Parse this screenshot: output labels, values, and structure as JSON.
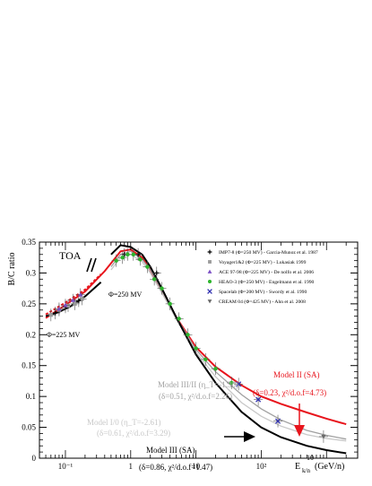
{
  "chart_data": {
    "type": "line",
    "xscale": "log",
    "xlim": [
      0.04,
      3000
    ],
    "ylim": [
      0,
      0.35
    ],
    "ylabel": "B/C ratio",
    "xlabel": "E",
    "xlabel_sub": "k/n",
    "xlabel_unit": "(GeV/n)",
    "xlabel_exp": "10",
    "x_tick_labels": [
      "10⁻¹",
      "1",
      "10",
      "10²"
    ],
    "x_ticks": [
      0.1,
      1,
      10,
      100
    ],
    "y_ticks": [
      0,
      0.05,
      0.1,
      0.15,
      0.2,
      0.25,
      0.3,
      0.35
    ],
    "y_tick_labels": [
      "0",
      "0.05",
      "0.1",
      "0.15",
      "0.2",
      "0.25",
      "0.3",
      "0.35"
    ],
    "annotations": {
      "toa": "TOA",
      "phi225": "Φ=225 MV",
      "phi250": "Φ=250 MV",
      "model_ii_line1": "Model II (SA)",
      "model_ii_line2": "(δ=0.23, χ²/d.o.f=4.73)",
      "model_iii_ii_line1": "Model III/II (η_T=-1.30)",
      "model_iii_ii_line2": "(δ=0.51, χ²/d.o.f=2.26)",
      "model_i0_line1": "Model I/0 (η_T=-2.61)",
      "model_i0_line2": "(δ=0.61, χ²/d.o.f=3.29)",
      "model_iii_line1": "Model III (SA)",
      "model_iii_line2": "(δ=0.86, χ²/d.o.f=1.47)"
    },
    "legend_position": "top-right",
    "legend": [
      {
        "label": "IMP7-8 (Φ=250 MV) - Garcia-Munoz et al. 1987",
        "marker": "plus",
        "color": "#000000"
      },
      {
        "label": "Voyager1&2 (Φ=225 MV) - Lukasiak 1999",
        "marker": "square",
        "color": "#9a9a9a"
      },
      {
        "label": "ACE 97-98 (Φ=225 MV) - De nolfo et al. 2006",
        "marker": "triangle-up",
        "color": "#7b4fc4"
      },
      {
        "label": "HEAO-3 (Φ=250 MV) - Engelmann et al. 1990",
        "marker": "circle",
        "color": "#2db52d"
      },
      {
        "label": "Spacelab (Φ=200 MV) - Swordy et al. 1990",
        "marker": "cross",
        "color": "#3030b0"
      },
      {
        "label": "CREAM 04 (Φ=425 MV) - Ahn et al. 2008",
        "marker": "triangle-down",
        "color": "#6a6a6a"
      }
    ],
    "series": [
      {
        "name": "Model II (SA)",
        "color": "#e8141c",
        "style": "solid",
        "x": [
          0.05,
          0.1,
          0.2,
          0.4,
          0.7,
          1,
          1.5,
          2,
          3,
          5,
          10,
          20,
          50,
          100,
          200,
          500,
          1000,
          2000
        ],
        "y": [
          0.227,
          0.248,
          0.27,
          0.303,
          0.335,
          0.338,
          0.325,
          0.305,
          0.27,
          0.228,
          0.18,
          0.148,
          0.118,
          0.1,
          0.088,
          0.074,
          0.064,
          0.055
        ]
      },
      {
        "name": "Model III/II (η_T=-1.30)",
        "color": "#a0a0a0",
        "style": "solid",
        "x": [
          0.5,
          0.7,
          1,
          1.5,
          2,
          3,
          5,
          10,
          20,
          50,
          100,
          200,
          500,
          1000,
          2000
        ],
        "y": [
          0.31,
          0.33,
          0.335,
          0.322,
          0.305,
          0.272,
          0.228,
          0.176,
          0.14,
          0.103,
          0.08,
          0.062,
          0.045,
          0.037,
          0.031
        ]
      },
      {
        "name": "Model I/0 (η_T=-2.61)",
        "color": "#c8c8c8",
        "style": "solid",
        "x": [
          0.5,
          0.7,
          1,
          1.5,
          2,
          3,
          5,
          10,
          20,
          50,
          100,
          200,
          500,
          1000,
          2000
        ],
        "y": [
          0.305,
          0.325,
          0.33,
          0.318,
          0.3,
          0.268,
          0.225,
          0.172,
          0.132,
          0.09,
          0.068,
          0.052,
          0.038,
          0.032,
          0.028
        ]
      },
      {
        "name": "Model III (SA)",
        "color": "#000000",
        "style": "solid",
        "x": [
          0.5,
          0.7,
          1,
          1.5,
          2,
          3,
          5,
          10,
          20,
          50,
          100,
          200,
          500,
          1000,
          2000
        ],
        "y": [
          0.33,
          0.345,
          0.342,
          0.33,
          0.31,
          0.275,
          0.228,
          0.168,
          0.122,
          0.075,
          0.05,
          0.034,
          0.02,
          0.013,
          0.008
        ]
      },
      {
        "name": "Model III (SA) low-energy",
        "color": "#000000",
        "style": "solid",
        "x": [
          0.05,
          0.08,
          0.12,
          0.2,
          0.35
        ],
        "y": [
          0.23,
          0.237,
          0.246,
          0.262,
          0.285
        ]
      },
      {
        "name": "Model II (SA) dashed",
        "color": "#e8141c",
        "style": "dashed",
        "x": [
          0.05,
          0.1,
          0.2,
          0.35
        ],
        "y": [
          0.233,
          0.252,
          0.273,
          0.298
        ]
      }
    ],
    "data_points": [
      {
        "marker": "plus",
        "color": "#000000",
        "points": [
          [
            0.07,
            0.235
          ],
          [
            0.1,
            0.245
          ],
          [
            0.16,
            0.255
          ],
          [
            0.8,
            0.33
          ],
          [
            1.3,
            0.33
          ],
          [
            2.5,
            0.3
          ]
        ]
      },
      {
        "marker": "square",
        "color": "#9a9a9a",
        "points": [
          [
            0.06,
            0.232
          ],
          [
            0.08,
            0.24
          ],
          [
            0.11,
            0.247
          ],
          [
            0.14,
            0.25
          ],
          [
            0.18,
            0.258
          ]
        ]
      },
      {
        "marker": "triangle-up",
        "color": "#7b4fc4",
        "points": [
          [
            0.08,
            0.242
          ],
          [
            0.1,
            0.248
          ],
          [
            0.13,
            0.256
          ],
          [
            0.17,
            0.265
          ]
        ]
      },
      {
        "marker": "circle",
        "color": "#2db52d",
        "points": [
          [
            0.6,
            0.32
          ],
          [
            0.75,
            0.325
          ],
          [
            0.9,
            0.33
          ],
          [
            1.1,
            0.33
          ],
          [
            1.4,
            0.322
          ],
          [
            1.8,
            0.31
          ],
          [
            2.3,
            0.29
          ],
          [
            3,
            0.275
          ],
          [
            4,
            0.25
          ],
          [
            5.5,
            0.226
          ],
          [
            7.5,
            0.2
          ],
          [
            10,
            0.178
          ],
          [
            14,
            0.16
          ],
          [
            20,
            0.145
          ],
          [
            35,
            0.122
          ]
        ]
      },
      {
        "marker": "cross",
        "color": "#3030b0",
        "points": [
          [
            45,
            0.12
          ],
          [
            90,
            0.095
          ],
          [
            180,
            0.06
          ]
        ]
      },
      {
        "marker": "triangle-down",
        "color": "#6a6a6a",
        "points": [
          [
            900,
            0.035
          ]
        ]
      }
    ]
  }
}
